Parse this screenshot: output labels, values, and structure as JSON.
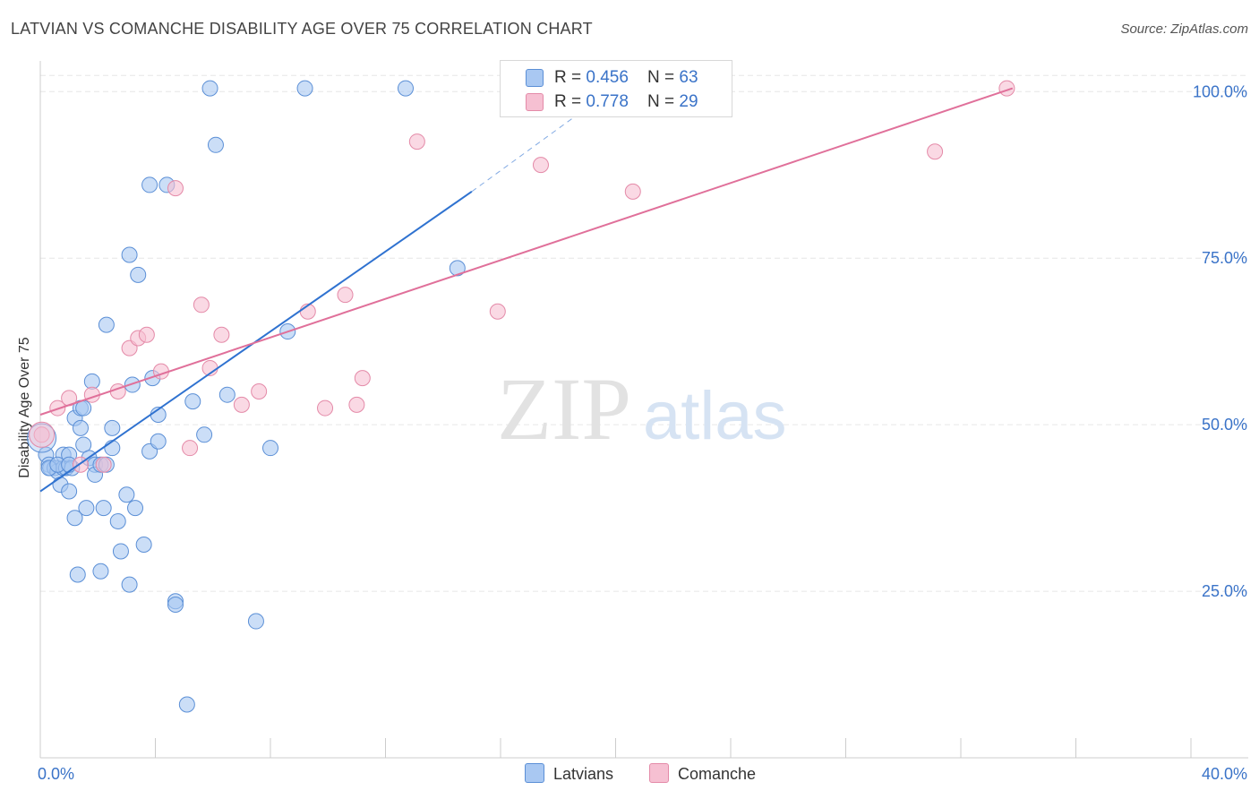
{
  "header": {
    "title": "LATVIAN VS COMANCHE DISABILITY AGE OVER 75 CORRELATION CHART",
    "source": "Source: ZipAtlas.com"
  },
  "legend": {
    "latvian": {
      "r_label": "R = ",
      "r_value": "0.456",
      "n_label": "N = ",
      "n_value": "63"
    },
    "comanche": {
      "r_label": "R = ",
      "r_value": "0.778",
      "n_label": "N = ",
      "n_value": "29"
    }
  },
  "bottom_legend": [
    "Latvians",
    "Comanche"
  ],
  "watermark": {
    "zip": "ZIP",
    "atlas": "atlas"
  },
  "colors": {
    "latvian_fill": "#a9c8f2",
    "latvian_stroke": "#5b8fd6",
    "latvian_line": "#2f72d0",
    "comanche_fill": "#f6c0d2",
    "comanche_stroke": "#e48aa8",
    "comanche_line": "#e0709a",
    "axis_label": "#3a73c8",
    "grid": "#e6e6e6"
  },
  "chart_data": {
    "type": "scatter",
    "title": "LATVIAN VS COMANCHE DISABILITY AGE OVER 75 CORRELATION CHART",
    "xlabel": "",
    "ylabel": "Disability Age Over 75",
    "xlim": [
      0,
      40
    ],
    "ylim": [
      0,
      103
    ],
    "x_tick_labels": [
      "0.0%",
      "40.0%"
    ],
    "y_ticks": [
      25,
      50,
      75,
      100
    ],
    "y_tick_labels": [
      "25.0%",
      "50.0%",
      "75.0%",
      "100.0%"
    ],
    "grid": true,
    "series": [
      {
        "name": "Latvians",
        "r": 0.456,
        "n": 63,
        "trend": {
          "x": [
            0,
            15
          ],
          "y": [
            40,
            85
          ]
        },
        "trend_dashed": {
          "x": [
            15,
            18.5
          ],
          "y": [
            85,
            96
          ]
        },
        "points": [
          {
            "x": 0.2,
            "y": 45.5
          },
          {
            "x": 0.3,
            "y": 44
          },
          {
            "x": 0.35,
            "y": 43.5
          },
          {
            "x": 0.5,
            "y": 43.5
          },
          {
            "x": 0.6,
            "y": 43
          },
          {
            "x": 0.7,
            "y": 41
          },
          {
            "x": 0.8,
            "y": 43.5
          },
          {
            "x": 0.8,
            "y": 45.5
          },
          {
            "x": 0.9,
            "y": 43.5
          },
          {
            "x": 1.0,
            "y": 45.5
          },
          {
            "x": 1.0,
            "y": 40
          },
          {
            "x": 1.1,
            "y": 43.5
          },
          {
            "x": 1.2,
            "y": 36
          },
          {
            "x": 1.2,
            "y": 51
          },
          {
            "x": 1.3,
            "y": 27.5
          },
          {
            "x": 1.4,
            "y": 49.5
          },
          {
            "x": 1.4,
            "y": 52.5
          },
          {
            "x": 1.5,
            "y": 52.5
          },
          {
            "x": 1.5,
            "y": 47
          },
          {
            "x": 1.6,
            "y": 37.5
          },
          {
            "x": 1.7,
            "y": 45
          },
          {
            "x": 1.8,
            "y": 56.5
          },
          {
            "x": 1.9,
            "y": 44
          },
          {
            "x": 1.9,
            "y": 42.5
          },
          {
            "x": 2.1,
            "y": 44
          },
          {
            "x": 2.1,
            "y": 28
          },
          {
            "x": 2.2,
            "y": 37.5
          },
          {
            "x": 2.3,
            "y": 44
          },
          {
            "x": 2.3,
            "y": 65
          },
          {
            "x": 2.5,
            "y": 46.5
          },
          {
            "x": 2.5,
            "y": 49.5
          },
          {
            "x": 2.7,
            "y": 35.5
          },
          {
            "x": 2.8,
            "y": 31
          },
          {
            "x": 3.0,
            "y": 39.5
          },
          {
            "x": 3.1,
            "y": 75.5
          },
          {
            "x": 3.1,
            "y": 26
          },
          {
            "x": 3.2,
            "y": 56
          },
          {
            "x": 3.3,
            "y": 37.5
          },
          {
            "x": 3.4,
            "y": 72.5
          },
          {
            "x": 3.6,
            "y": 32
          },
          {
            "x": 3.8,
            "y": 86
          },
          {
            "x": 3.8,
            "y": 46
          },
          {
            "x": 3.9,
            "y": 57
          },
          {
            "x": 4.1,
            "y": 51.5
          },
          {
            "x": 4.1,
            "y": 47.5
          },
          {
            "x": 4.4,
            "y": 86
          },
          {
            "x": 4.7,
            "y": 23.5
          },
          {
            "x": 4.7,
            "y": 23
          },
          {
            "x": 5.1,
            "y": 8
          },
          {
            "x": 5.3,
            "y": 53.5
          },
          {
            "x": 5.7,
            "y": 48.5
          },
          {
            "x": 5.9,
            "y": 100.5
          },
          {
            "x": 6.1,
            "y": 92
          },
          {
            "x": 6.5,
            "y": 54.5
          },
          {
            "x": 7.5,
            "y": 20.5
          },
          {
            "x": 8.0,
            "y": 46.5
          },
          {
            "x": 8.6,
            "y": 64
          },
          {
            "x": 9.2,
            "y": 100.5
          },
          {
            "x": 12.7,
            "y": 100.5
          },
          {
            "x": 14.5,
            "y": 73.5
          },
          {
            "x": 0.3,
            "y": 43.5
          },
          {
            "x": 0.6,
            "y": 44
          },
          {
            "x": 1.0,
            "y": 44
          }
        ]
      },
      {
        "name": "Comanche",
        "r": 0.778,
        "n": 29,
        "trend": {
          "x": [
            0,
            33.8
          ],
          "y": [
            51.5,
            100.5
          ]
        },
        "points": [
          {
            "x": 0.05,
            "y": 48.5
          },
          {
            "x": 0.6,
            "y": 52.5
          },
          {
            "x": 1.0,
            "y": 54
          },
          {
            "x": 1.4,
            "y": 44
          },
          {
            "x": 1.8,
            "y": 54.5
          },
          {
            "x": 2.2,
            "y": 44
          },
          {
            "x": 2.7,
            "y": 55
          },
          {
            "x": 3.1,
            "y": 61.5
          },
          {
            "x": 3.4,
            "y": 63
          },
          {
            "x": 3.7,
            "y": 63.5
          },
          {
            "x": 4.2,
            "y": 58
          },
          {
            "x": 4.7,
            "y": 85.5
          },
          {
            "x": 5.2,
            "y": 46.5
          },
          {
            "x": 5.6,
            "y": 68
          },
          {
            "x": 5.9,
            "y": 58.5
          },
          {
            "x": 6.3,
            "y": 63.5
          },
          {
            "x": 7.0,
            "y": 53
          },
          {
            "x": 7.6,
            "y": 55
          },
          {
            "x": 9.3,
            "y": 67
          },
          {
            "x": 9.9,
            "y": 52.5
          },
          {
            "x": 10.6,
            "y": 69.5
          },
          {
            "x": 11.0,
            "y": 53
          },
          {
            "x": 11.2,
            "y": 57
          },
          {
            "x": 13.1,
            "y": 92.5
          },
          {
            "x": 15.9,
            "y": 67
          },
          {
            "x": 17.4,
            "y": 89
          },
          {
            "x": 20.6,
            "y": 85
          },
          {
            "x": 31.1,
            "y": 91
          },
          {
            "x": 33.6,
            "y": 100.5
          }
        ]
      }
    ]
  }
}
